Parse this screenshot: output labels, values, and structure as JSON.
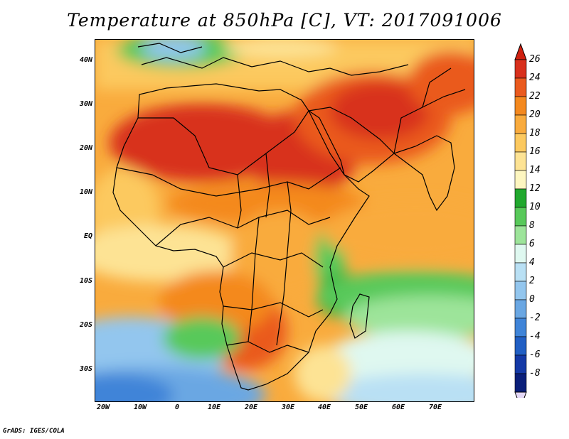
{
  "title": "Temperature at 850hPa [C], VT: 2017091006",
  "credit": "GrADS: IGES/COLA",
  "lat_labels": [
    "40N",
    "30N",
    "20N",
    "10N",
    "EQ",
    "10S",
    "20S",
    "30S"
  ],
  "lon_labels": [
    "20W",
    "10W",
    "0",
    "10E",
    "20E",
    "30E",
    "40E",
    "50E",
    "60E",
    "70E"
  ],
  "colorbar": {
    "labels": [
      "26",
      "24",
      "22",
      "20",
      "18",
      "16",
      "14",
      "12",
      "10",
      "8",
      "6",
      "4",
      "2",
      "0",
      "-2",
      "-4",
      "-6",
      "-8"
    ],
    "colors": [
      "#d8301c",
      "#ea5a1e",
      "#f4891f",
      "#f9ab3d",
      "#fcc95f",
      "#fde394",
      "#fdf6c0",
      "#21a82e",
      "#58c95a",
      "#9de49a",
      "#dff8f0",
      "#b9e0f4",
      "#93c6ee",
      "#6aa7e3",
      "#3f84d8",
      "#215fc4",
      "#1439a6",
      "#0a1f7a"
    ],
    "over_color": "#cf2010",
    "under_color": "#e4d8f7"
  }
}
